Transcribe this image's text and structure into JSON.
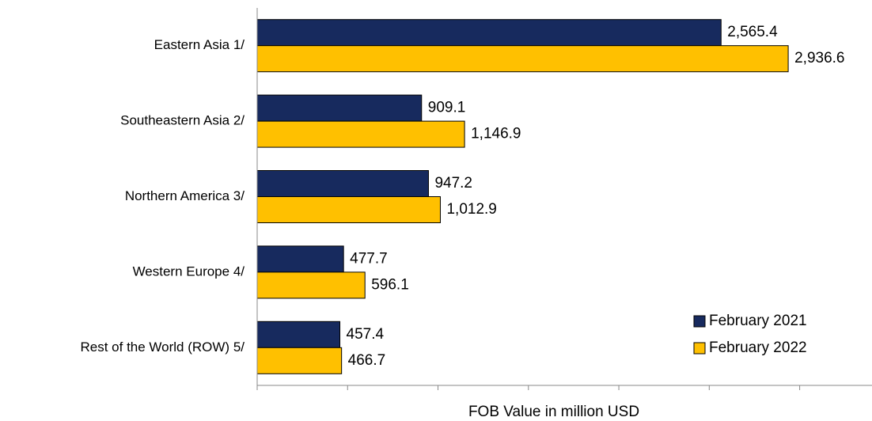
{
  "chart_data": {
    "type": "bar",
    "orientation": "horizontal",
    "categories": [
      "Eastern Asia 1/",
      "Southeastern Asia 2/",
      "Northern America 3/",
      "Western Europe 4/",
      "Rest of the World (ROW) 5/"
    ],
    "series": [
      {
        "name": "February 2021",
        "color": "#172a5e",
        "values": [
          2565.4,
          909.1,
          947.2,
          477.7,
          457.4
        ],
        "value_labels": [
          "2,565.4",
          "909.1",
          "947.2",
          "477.7",
          "457.4"
        ]
      },
      {
        "name": "February 2022",
        "color": "#ffc000",
        "values": [
          2936.6,
          1146.9,
          1012.9,
          596.1,
          466.7
        ],
        "value_labels": [
          "2,936.6",
          "1,146.9",
          "1,012.9",
          "596.1",
          "466.7"
        ]
      }
    ],
    "xlabel": "FOB  Value in million USD",
    "xlim": [
      0,
      3400
    ],
    "xticks": [
      0,
      500,
      1000,
      1500,
      2000,
      2500,
      3000
    ],
    "legend": "lower right"
  }
}
